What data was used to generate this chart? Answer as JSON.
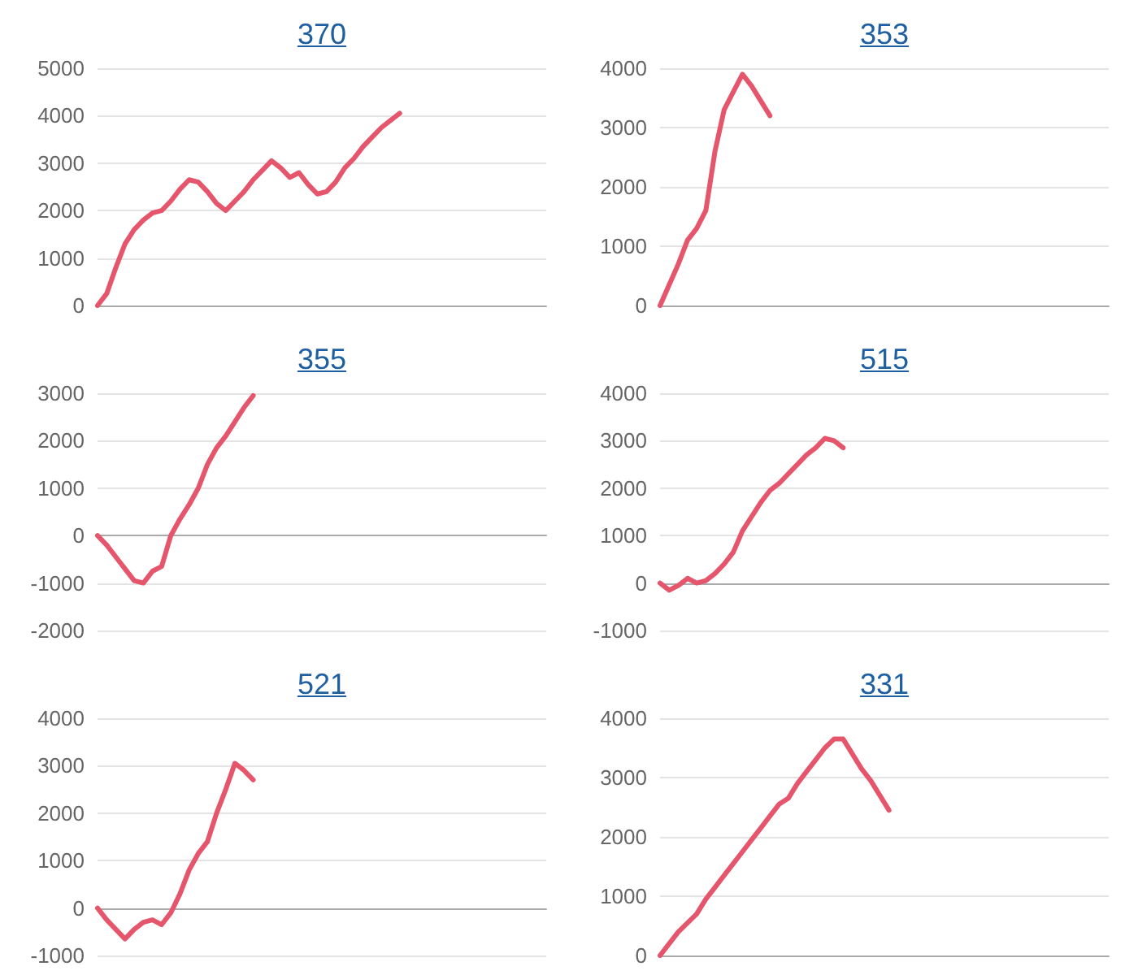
{
  "chart_data": [
    {
      "type": "line",
      "title": "370",
      "categories": [
        null,
        null,
        null,
        null,
        null,
        null,
        null,
        null,
        null,
        null,
        null,
        null,
        null,
        null,
        null,
        null,
        null,
        null,
        null,
        null,
        null,
        null,
        null,
        null,
        null,
        null,
        null,
        null,
        null,
        null,
        null,
        null,
        null,
        null,
        null,
        null,
        null,
        null,
        null,
        null,
        null,
        null,
        null,
        null,
        null,
        null,
        null,
        null,
        null,
        null
      ],
      "series": [
        {
          "color": "#e5566c",
          "values": [
            0,
            250,
            800,
            1300,
            1600,
            1800,
            1950,
            2000,
            2200,
            2450,
            2650,
            2600,
            2400,
            2150,
            2000,
            2200,
            2400,
            2650,
            2850,
            3050,
            2900,
            2700,
            2800,
            2550,
            2350,
            2400,
            2600,
            2900,
            3100,
            3350,
            3550,
            3750,
            3900,
            4050,
            null,
            null,
            null,
            null,
            null,
            null,
            null,
            null,
            null,
            null,
            null,
            null,
            null,
            null,
            null,
            null
          ]
        }
      ],
      "ylim": [
        0,
        5000
      ],
      "yticks": [
        0,
        1000,
        2000,
        3000,
        4000,
        5000
      ],
      "grid": "y",
      "tick_labels": "y"
    },
    {
      "type": "line",
      "title": "353",
      "categories": [
        null,
        null,
        null,
        null,
        null,
        null,
        null,
        null,
        null,
        null,
        null,
        null,
        null,
        null,
        null,
        null,
        null,
        null,
        null,
        null,
        null,
        null,
        null,
        null,
        null,
        null,
        null,
        null,
        null,
        null,
        null,
        null,
        null,
        null,
        null,
        null,
        null,
        null,
        null,
        null,
        null,
        null,
        null,
        null,
        null,
        null,
        null,
        null,
        null,
        null
      ],
      "series": [
        {
          "color": "#e5566c",
          "values": [
            0,
            350,
            700,
            1100,
            1300,
            1600,
            2600,
            3300,
            3600,
            3900,
            3700,
            3450,
            3200,
            null,
            null,
            null,
            null,
            null,
            null,
            null,
            null,
            null,
            null,
            null,
            null,
            null,
            null,
            null,
            null,
            null,
            null,
            null,
            null,
            null,
            null,
            null,
            null,
            null,
            null,
            null,
            null,
            null,
            null,
            null,
            null,
            null,
            null,
            null,
            null,
            null
          ]
        }
      ],
      "ylim": [
        0,
        4000
      ],
      "yticks": [
        0,
        1000,
        2000,
        3000,
        4000
      ],
      "grid": "y",
      "tick_labels": "y"
    },
    {
      "type": "line",
      "title": "355",
      "categories": [
        null,
        null,
        null,
        null,
        null,
        null,
        null,
        null,
        null,
        null,
        null,
        null,
        null,
        null,
        null,
        null,
        null,
        null,
        null,
        null,
        null,
        null,
        null,
        null,
        null,
        null,
        null,
        null,
        null,
        null,
        null,
        null,
        null,
        null,
        null,
        null,
        null,
        null,
        null,
        null,
        null,
        null,
        null,
        null,
        null,
        null,
        null,
        null,
        null,
        null
      ],
      "series": [
        {
          "color": "#e5566c",
          "values": [
            0,
            -200,
            -450,
            -700,
            -950,
            -1000,
            -750,
            -650,
            0,
            350,
            650,
            1000,
            1500,
            1850,
            2100,
            2400,
            2700,
            2950,
            null,
            null,
            null,
            null,
            null,
            null,
            null,
            null,
            null,
            null,
            null,
            null,
            null,
            null,
            null,
            null,
            null,
            null,
            null,
            null,
            null,
            null,
            null,
            null,
            null,
            null,
            null,
            null,
            null,
            null,
            null,
            null
          ]
        }
      ],
      "ylim": [
        -2000,
        3000
      ],
      "yticks": [
        -2000,
        -1000,
        0,
        1000,
        2000,
        3000
      ],
      "grid": "y",
      "tick_labels": "y"
    },
    {
      "type": "line",
      "title": "515",
      "categories": [
        null,
        null,
        null,
        null,
        null,
        null,
        null,
        null,
        null,
        null,
        null,
        null,
        null,
        null,
        null,
        null,
        null,
        null,
        null,
        null,
        null,
        null,
        null,
        null,
        null,
        null,
        null,
        null,
        null,
        null,
        null,
        null,
        null,
        null,
        null,
        null,
        null,
        null,
        null,
        null,
        null,
        null,
        null,
        null,
        null,
        null,
        null,
        null,
        null,
        null
      ],
      "series": [
        {
          "color": "#e5566c",
          "values": [
            0,
            -150,
            -50,
            100,
            0,
            50,
            200,
            400,
            650,
            1100,
            1400,
            1700,
            1950,
            2100,
            2300,
            2500,
            2700,
            2850,
            3050,
            3000,
            2850,
            null,
            null,
            null,
            null,
            null,
            null,
            null,
            null,
            null,
            null,
            null,
            null,
            null,
            null,
            null,
            null,
            null,
            null,
            null,
            null,
            null,
            null,
            null,
            null,
            null,
            null,
            null,
            null,
            null
          ]
        }
      ],
      "ylim": [
        -1000,
        4000
      ],
      "yticks": [
        -1000,
        0,
        1000,
        2000,
        3000,
        4000
      ],
      "grid": "y",
      "tick_labels": "y"
    },
    {
      "type": "line",
      "title": "521",
      "categories": [
        null,
        null,
        null,
        null,
        null,
        null,
        null,
        null,
        null,
        null,
        null,
        null,
        null,
        null,
        null,
        null,
        null,
        null,
        null,
        null,
        null,
        null,
        null,
        null,
        null,
        null,
        null,
        null,
        null,
        null,
        null,
        null,
        null,
        null,
        null,
        null,
        null,
        null,
        null,
        null,
        null,
        null,
        null,
        null,
        null,
        null,
        null,
        null,
        null,
        null
      ],
      "series": [
        {
          "color": "#e5566c",
          "values": [
            0,
            -250,
            -450,
            -650,
            -450,
            -300,
            -250,
            -350,
            -100,
            300,
            800,
            1150,
            1400,
            2000,
            2500,
            3050,
            2900,
            2700,
            null,
            null,
            null,
            null,
            null,
            null,
            null,
            null,
            null,
            null,
            null,
            null,
            null,
            null,
            null,
            null,
            null,
            null,
            null,
            null,
            null,
            null,
            null,
            null,
            null,
            null,
            null,
            null,
            null,
            null,
            null,
            null
          ]
        }
      ],
      "ylim": [
        -1000,
        4000
      ],
      "yticks": [
        -1000,
        0,
        1000,
        2000,
        3000,
        4000
      ],
      "grid": "y",
      "tick_labels": "y"
    },
    {
      "type": "line",
      "title": "331",
      "categories": [
        null,
        null,
        null,
        null,
        null,
        null,
        null,
        null,
        null,
        null,
        null,
        null,
        null,
        null,
        null,
        null,
        null,
        null,
        null,
        null,
        null,
        null,
        null,
        null,
        null,
        null,
        null,
        null,
        null,
        null,
        null,
        null,
        null,
        null,
        null,
        null,
        null,
        null,
        null,
        null,
        null,
        null,
        null,
        null,
        null,
        null,
        null,
        null,
        null,
        null
      ],
      "series": [
        {
          "color": "#e5566c",
          "values": [
            0,
            200,
            400,
            550,
            700,
            950,
            1150,
            1350,
            1550,
            1750,
            1950,
            2150,
            2350,
            2550,
            2650,
            2900,
            3100,
            3300,
            3500,
            3650,
            3650,
            3400,
            3150,
            2950,
            2700,
            2450,
            null,
            null,
            null,
            null,
            null,
            null,
            null,
            null,
            null,
            null,
            null,
            null,
            null,
            null,
            null,
            null,
            null,
            null,
            null,
            null,
            null,
            null,
            null,
            null
          ]
        }
      ],
      "ylim": [
        0,
        4000
      ],
      "yticks": [
        0,
        1000,
        2000,
        3000,
        4000
      ],
      "grid": "y",
      "tick_labels": "y"
    }
  ]
}
